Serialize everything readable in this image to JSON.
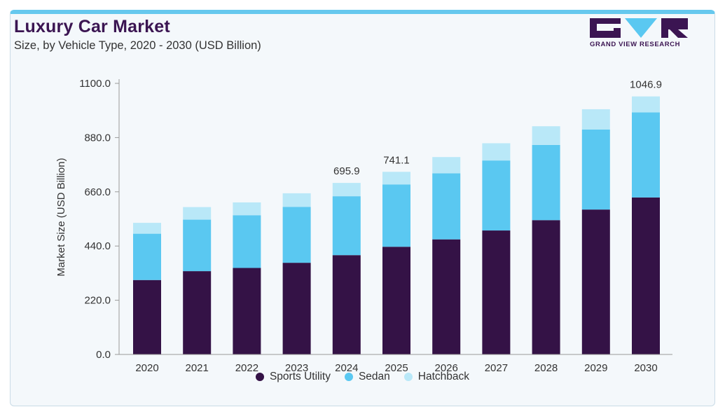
{
  "header": {
    "title": "Luxury Car Market",
    "subtitle": "Size, by Vehicle Type, 2020 - 2030 (USD Billion)",
    "brand": "GRAND VIEW RESEARCH"
  },
  "colors": {
    "sports_utility": "#341246",
    "sedan": "#5ac8f1",
    "hatchback": "#b9e8f8",
    "brand": "#3b1552"
  },
  "chart_data": {
    "type": "bar",
    "stacked": true,
    "categories": [
      "2020",
      "2021",
      "2022",
      "2023",
      "2024",
      "2025",
      "2026",
      "2027",
      "2028",
      "2029",
      "2030"
    ],
    "series": [
      {
        "name": "Sports Utility",
        "values": [
          302,
          338,
          351,
          372,
          403,
          437,
          467,
          503,
          545,
          588,
          637
        ]
      },
      {
        "name": "Sedan",
        "values": [
          188,
          209,
          214,
          227,
          239,
          253,
          268,
          284,
          305,
          325,
          345
        ]
      },
      {
        "name": "Hatchback",
        "values": [
          44,
          51,
          52,
          55,
          54,
          51,
          66,
          70,
          76,
          82,
          65
        ]
      }
    ],
    "total_labels": {
      "2024": "695.9",
      "2025": "741.1",
      "2030": "1046.9"
    },
    "ylabel": "Market Size (USD Billion)",
    "xlabel": "",
    "ylim": [
      0,
      1100
    ],
    "yticks": [
      "0.0",
      "220.0",
      "440.0",
      "660.0",
      "880.0",
      "1100.0"
    ],
    "grid": false,
    "legend_position": "bottom"
  }
}
